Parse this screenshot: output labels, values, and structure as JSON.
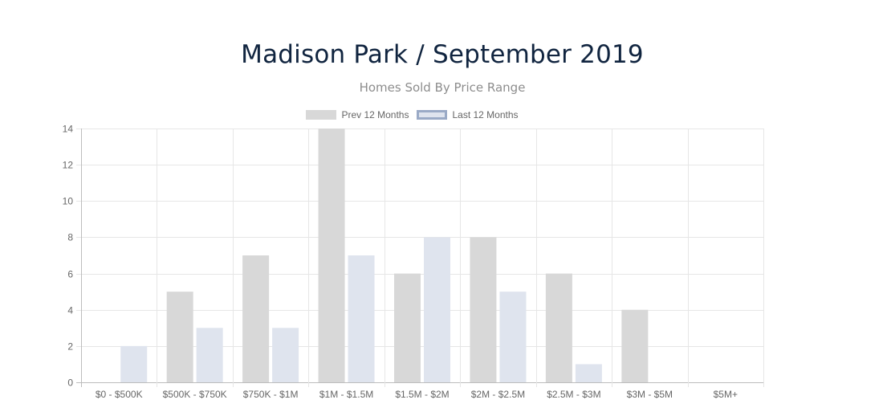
{
  "chart_data": {
    "type": "bar",
    "title": "Madison Park / September 2019",
    "subtitle": "Homes Sold By Price Range",
    "categories": [
      "$0 - $500K",
      "$500K - $750K",
      "$750K - $1M",
      "$1M - $1.5M",
      "$1.5M - $2M",
      "$2M - $2.5M",
      "$2.5M - $3M",
      "$3M - $5M",
      "$5M+"
    ],
    "series": [
      {
        "name": "Prev 12 Months",
        "values": [
          0,
          5,
          7,
          14,
          6,
          8,
          6,
          4,
          0
        ],
        "color": "#d8d8d8",
        "border": "#d8d8d8"
      },
      {
        "name": "Last 12 Months",
        "values": [
          2,
          3,
          3,
          7,
          8,
          5,
          1,
          0,
          0
        ],
        "color": "#dfe4ee",
        "border": "#9aaac6"
      }
    ],
    "yticks": [
      0,
      2,
      4,
      6,
      8,
      10,
      12,
      14
    ],
    "ylim": [
      0,
      14
    ],
    "grid": true,
    "legend_position": "top"
  }
}
